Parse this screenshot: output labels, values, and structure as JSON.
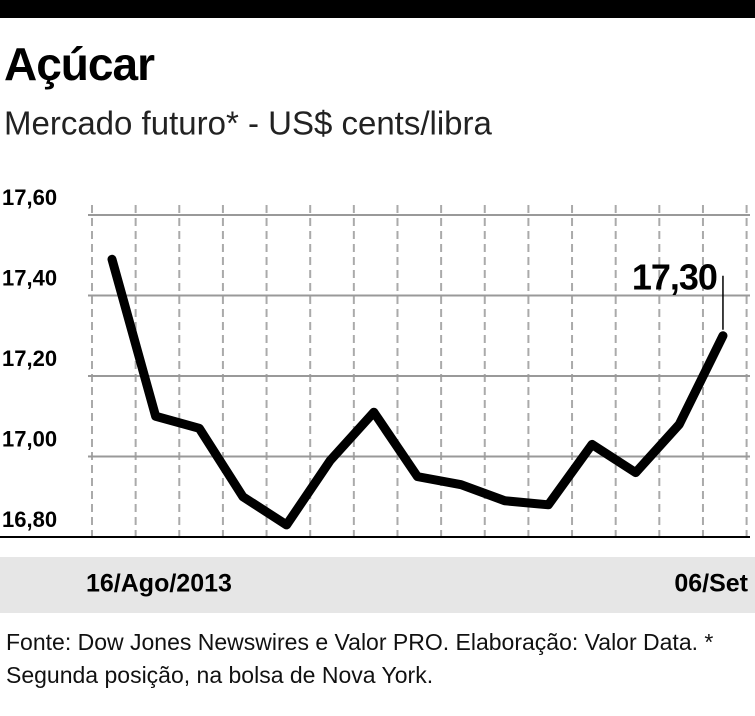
{
  "chart_data": {
    "type": "line",
    "title": "Açúcar",
    "subtitle": "Mercado futuro* - US$ cents/libra",
    "categories": [
      "16/Ago/2013",
      null,
      null,
      null,
      null,
      null,
      null,
      null,
      null,
      null,
      null,
      null,
      null,
      null,
      "06/Set"
    ],
    "series": [
      {
        "name": "Açúcar",
        "color": "#000000",
        "values": [
          17.49,
          17.1,
          17.07,
          16.9,
          16.83,
          16.99,
          17.11,
          16.95,
          16.93,
          16.89,
          16.88,
          17.03,
          16.96,
          17.08,
          17.3
        ],
        "value_labels": [
          null,
          null,
          null,
          null,
          null,
          null,
          null,
          null,
          null,
          null,
          null,
          null,
          null,
          null,
          "17,30"
        ]
      }
    ],
    "ylim": [
      16.8,
      17.6
    ],
    "yticks": [
      {
        "value": 16.8,
        "label": "16,80"
      },
      {
        "value": 17.0,
        "label": "17,00"
      },
      {
        "value": 17.2,
        "label": "17,20"
      },
      {
        "value": 17.4,
        "label": "17,40"
      },
      {
        "value": 17.6,
        "label": "17,60"
      }
    ],
    "grid": true,
    "source": "Fonte: Dow Jones Newswires e Valor PRO. Elaboração: Valor Data. * Segunda posição, na bolsa de Nova York."
  }
}
